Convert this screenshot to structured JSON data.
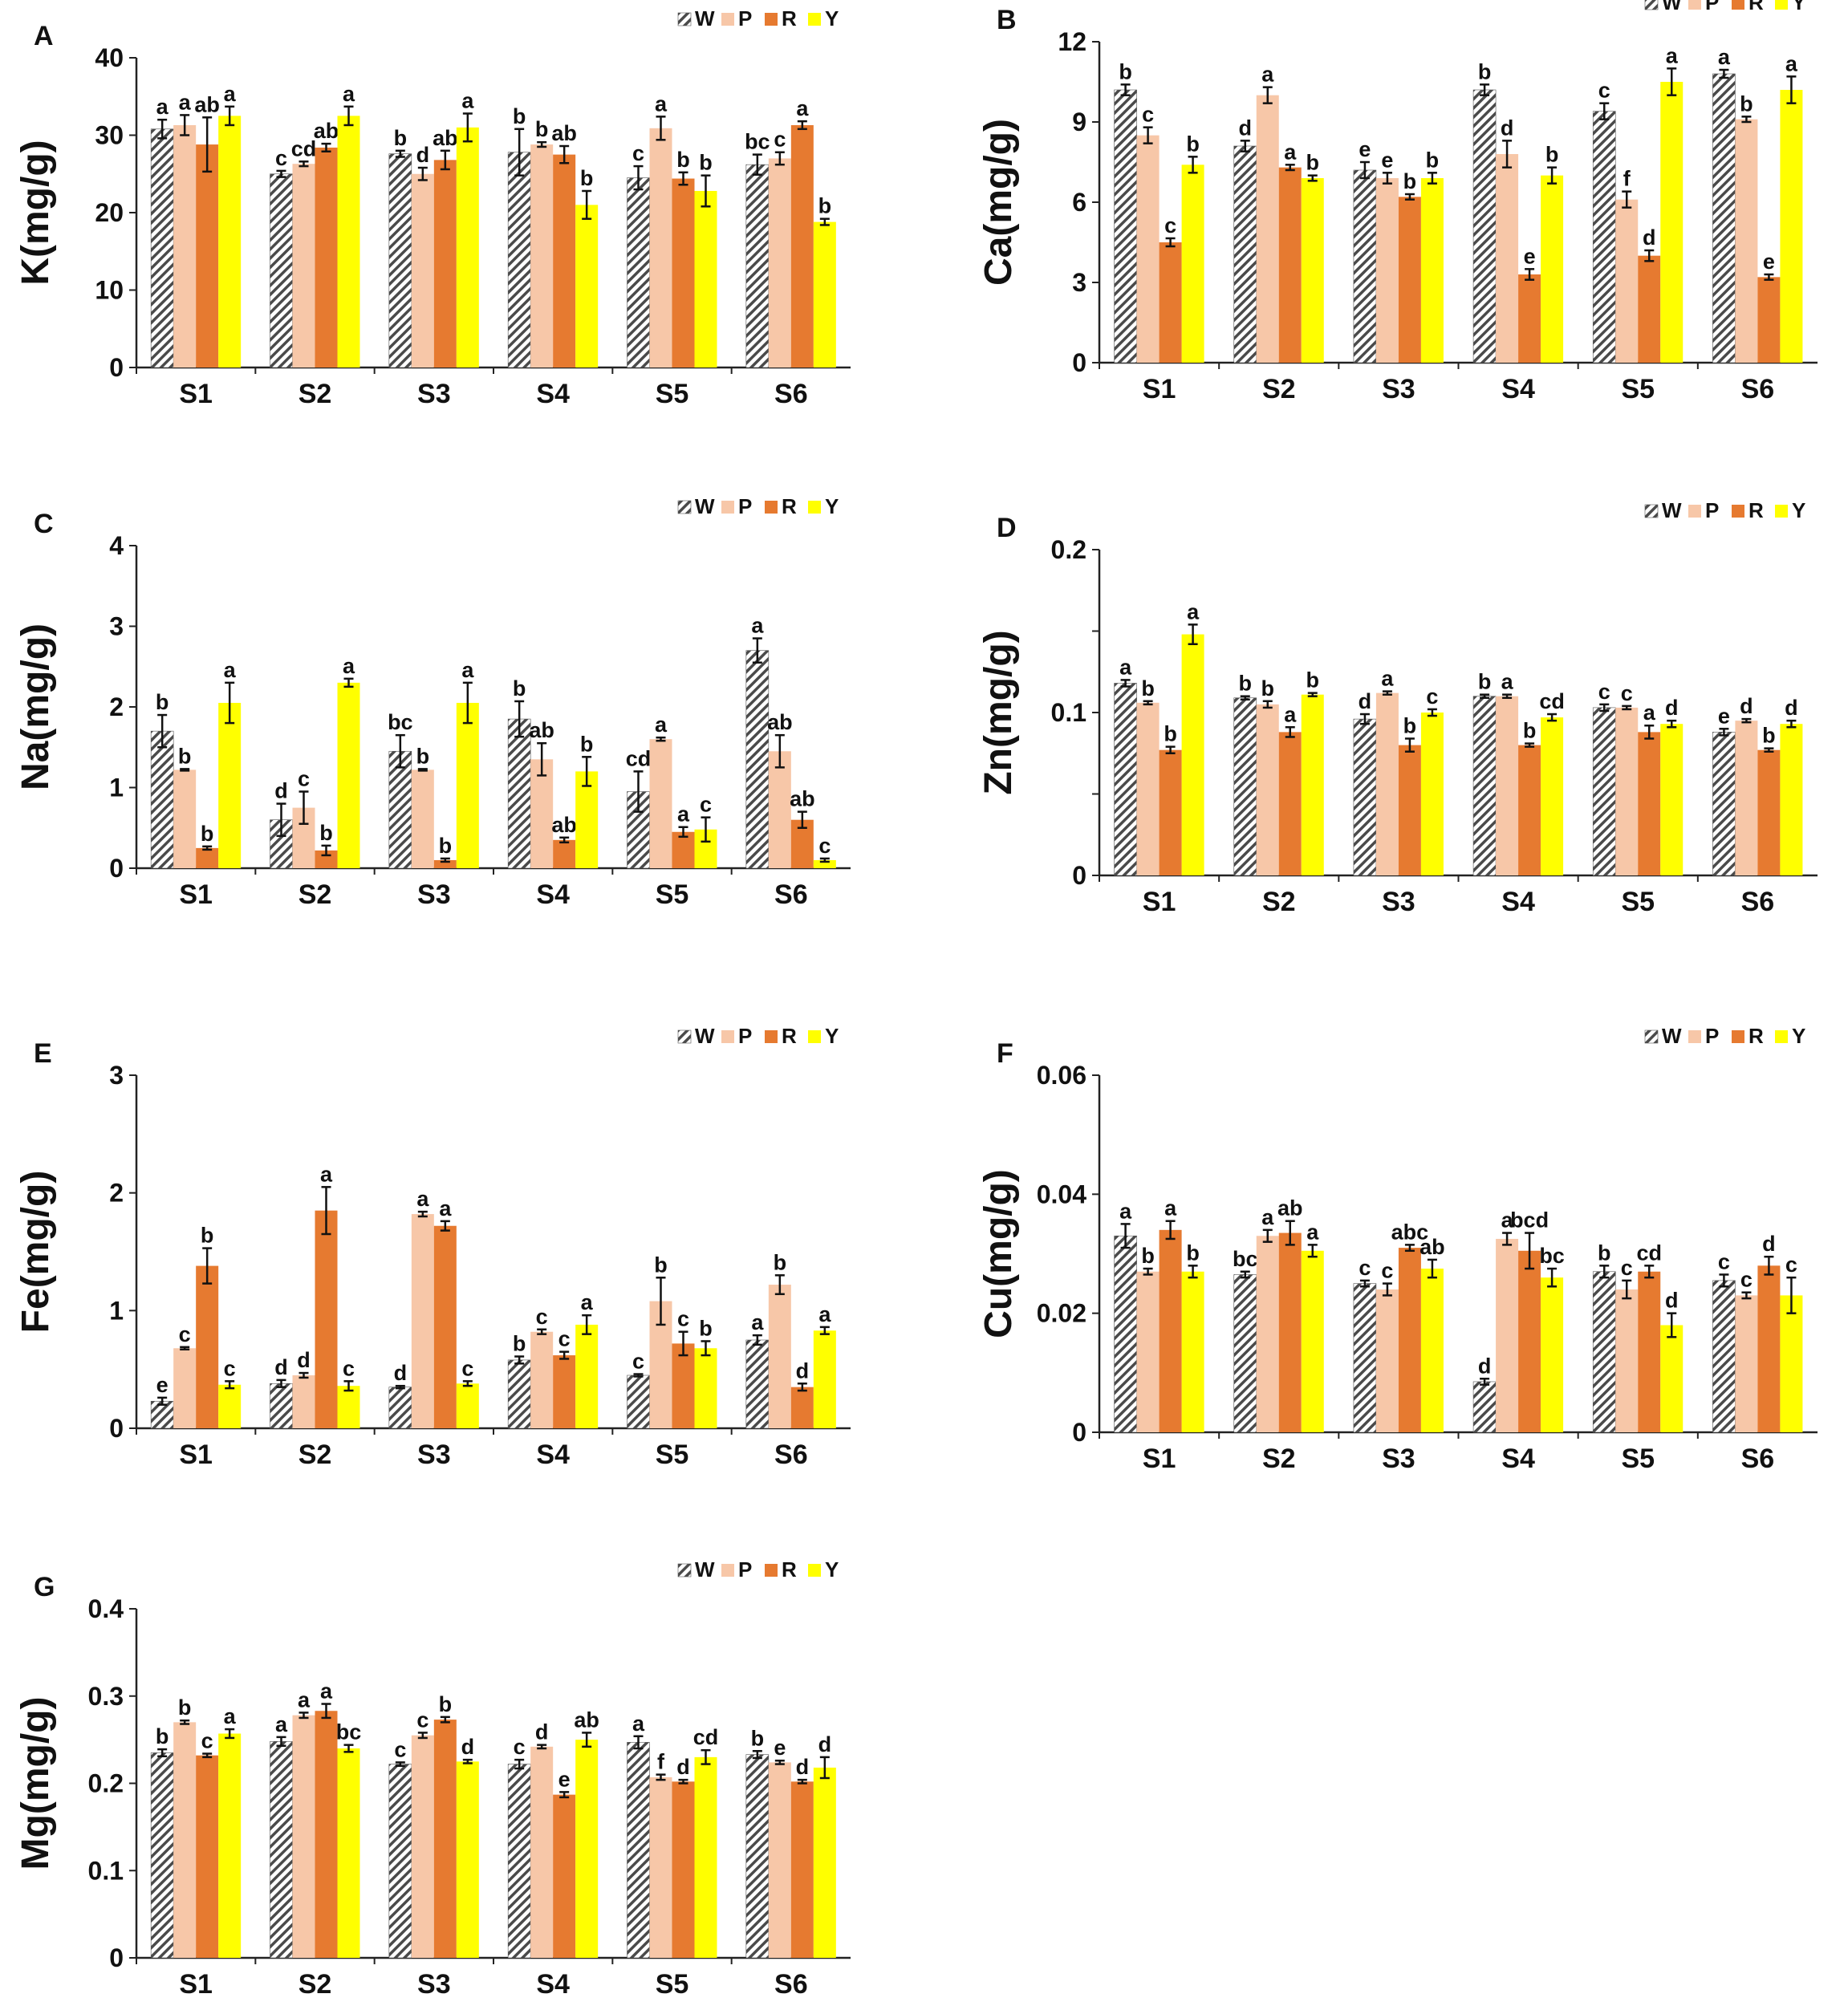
{
  "chart_data": [
    {
      "type": "bar",
      "panel": "A",
      "title": "",
      "xlabel": "",
      "ylabel": "K(mg/g)",
      "ylim": [
        0,
        40
      ],
      "yticks": [
        "0",
        "10",
        "20",
        "30",
        "40"
      ],
      "categories": [
        "S1",
        "S2",
        "S3",
        "S4",
        "S5",
        "S6"
      ],
      "legend": [
        "W",
        "P",
        "R",
        "Y"
      ],
      "legend_position": "top-right",
      "colors": [
        "#5a5a5a",
        "#f7c7a8",
        "#e67a30",
        "#ffff00"
      ],
      "series": [
        {
          "name": "W",
          "values": [
            30.8,
            25.0,
            27.6,
            27.8,
            24.5,
            26.2
          ],
          "errors": [
            1.2,
            0.4,
            0.4,
            3.0,
            1.5,
            1.3
          ],
          "letters": [
            "a",
            "c",
            "b",
            "b",
            "c",
            "bc"
          ]
        },
        {
          "name": "P",
          "values": [
            31.3,
            26.3,
            25.0,
            28.8,
            30.9,
            27.0
          ],
          "errors": [
            1.3,
            0.3,
            0.8,
            0.3,
            1.5,
            0.8
          ],
          "letters": [
            "a",
            "cd",
            "d",
            "b",
            "a",
            "c"
          ]
        },
        {
          "name": "R",
          "values": [
            28.8,
            28.4,
            26.8,
            27.5,
            24.4,
            31.3
          ],
          "errors": [
            3.5,
            0.5,
            1.2,
            1.1,
            0.8,
            0.5
          ],
          "letters": [
            "ab",
            "ab",
            "ab",
            "ab",
            "b",
            "a"
          ]
        },
        {
          "name": "Y",
          "values": [
            32.5,
            32.5,
            31.0,
            21.0,
            22.8,
            18.8
          ],
          "errors": [
            1.2,
            1.2,
            1.8,
            1.8,
            2.0,
            0.4
          ],
          "letters": [
            "a",
            "a",
            "a",
            "b",
            "b",
            "b"
          ]
        }
      ]
    },
    {
      "type": "bar",
      "panel": "B",
      "title": "",
      "xlabel": "",
      "ylabel": "Ca(mg/g)",
      "ylim": [
        0,
        12
      ],
      "yticks": [
        "0",
        "3",
        "6",
        "9",
        "12"
      ],
      "categories": [
        "S1",
        "S2",
        "S3",
        "S4",
        "S5",
        "S6"
      ],
      "legend": [
        "W",
        "P",
        "R",
        "Y"
      ],
      "legend_position": "top-right",
      "colors": [
        "#5a5a5a",
        "#f7c7a8",
        "#e67a30",
        "#ffff00"
      ],
      "series": [
        {
          "name": "W",
          "values": [
            10.2,
            8.1,
            7.2,
            10.2,
            9.4,
            10.8
          ],
          "errors": [
            0.2,
            0.2,
            0.3,
            0.2,
            0.3,
            0.15
          ],
          "letters": [
            "b",
            "d",
            "e",
            "b",
            "c",
            "a"
          ]
        },
        {
          "name": "P",
          "values": [
            8.5,
            10.0,
            6.9,
            7.8,
            6.1,
            9.1
          ],
          "errors": [
            0.3,
            0.3,
            0.2,
            0.5,
            0.3,
            0.1
          ],
          "letters": [
            "c",
            "a",
            "e",
            "d",
            "f",
            "b"
          ]
        },
        {
          "name": "R",
          "values": [
            4.5,
            7.3,
            6.2,
            3.3,
            4.0,
            3.2
          ],
          "errors": [
            0.15,
            0.1,
            0.1,
            0.2,
            0.2,
            0.1
          ],
          "letters": [
            "c",
            "a",
            "b",
            "e",
            "d",
            "e"
          ]
        },
        {
          "name": "Y",
          "values": [
            7.4,
            6.9,
            6.9,
            7.0,
            10.5,
            10.2
          ],
          "errors": [
            0.3,
            0.1,
            0.2,
            0.3,
            0.5,
            0.5
          ],
          "letters": [
            "b",
            "b",
            "b",
            "b",
            "a",
            "a"
          ]
        }
      ]
    },
    {
      "type": "bar",
      "panel": "C",
      "title": "",
      "xlabel": "",
      "ylabel": "Na(mg/g)",
      "ylim": [
        0,
        4
      ],
      "yticks": [
        "0",
        "1",
        "2",
        "3",
        "4"
      ],
      "categories": [
        "S1",
        "S2",
        "S3",
        "S4",
        "S5",
        "S6"
      ],
      "legend": [
        "W",
        "P",
        "R",
        "Y"
      ],
      "legend_position": "top-right",
      "colors": [
        "#5a5a5a",
        "#f7c7a8",
        "#e67a30",
        "#ffff00"
      ],
      "series": [
        {
          "name": "W",
          "values": [
            1.7,
            0.6,
            1.45,
            1.85,
            0.95,
            2.7
          ],
          "errors": [
            0.2,
            0.2,
            0.2,
            0.22,
            0.25,
            0.15
          ],
          "letters": [
            "b",
            "d",
            "bc",
            "b",
            "cd",
            "a"
          ]
        },
        {
          "name": "P",
          "values": [
            1.22,
            0.75,
            1.22,
            1.35,
            1.6,
            1.45
          ],
          "errors": [
            0.01,
            0.2,
            0.01,
            0.2,
            0.02,
            0.2
          ],
          "letters": [
            "b",
            "c",
            "b",
            "ab",
            "a",
            "ab"
          ]
        },
        {
          "name": "R",
          "values": [
            0.25,
            0.22,
            0.1,
            0.35,
            0.45,
            0.6
          ],
          "errors": [
            0.02,
            0.06,
            0.02,
            0.03,
            0.06,
            0.1
          ],
          "letters": [
            "b",
            "b",
            "b",
            "ab",
            "a",
            "ab"
          ]
        },
        {
          "name": "Y",
          "values": [
            2.05,
            2.3,
            2.05,
            1.2,
            0.48,
            0.1
          ],
          "errors": [
            0.25,
            0.05,
            0.25,
            0.18,
            0.15,
            0.02
          ],
          "letters": [
            "a",
            "a",
            "a",
            "b",
            "c",
            "c"
          ]
        }
      ]
    },
    {
      "type": "bar",
      "panel": "D",
      "title": "",
      "xlabel": "",
      "ylabel": "Zn(mg/g)",
      "ylim": [
        0,
        0.2
      ],
      "yticks": [
        "0",
        "",
        "0.1",
        "",
        "0.2"
      ],
      "categories": [
        "S1",
        "S2",
        "S3",
        "S4",
        "S5",
        "S6"
      ],
      "legend": [
        "W",
        "P",
        "R",
        "Y"
      ],
      "legend_position": "top-right",
      "colors": [
        "#5a5a5a",
        "#f7c7a8",
        "#e67a30",
        "#ffff00"
      ],
      "series": [
        {
          "name": "W",
          "values": [
            0.118,
            0.109,
            0.096,
            0.11,
            0.103,
            0.088
          ],
          "errors": [
            0.002,
            0.001,
            0.003,
            0.001,
            0.002,
            0.002
          ],
          "letters": [
            "a",
            "b",
            "d",
            "b",
            "c",
            "e"
          ]
        },
        {
          "name": "P",
          "values": [
            0.106,
            0.105,
            0.112,
            0.11,
            0.103,
            0.095
          ],
          "errors": [
            0.001,
            0.002,
            0.001,
            0.001,
            0.001,
            0.001
          ],
          "letters": [
            "b",
            "b",
            "a",
            "a",
            "c",
            "d"
          ]
        },
        {
          "name": "R",
          "values": [
            0.077,
            0.088,
            0.08,
            0.08,
            0.088,
            0.077
          ],
          "errors": [
            0.002,
            0.003,
            0.004,
            0.001,
            0.004,
            0.001
          ],
          "letters": [
            "b",
            "a",
            "b",
            "b",
            "a",
            "b"
          ]
        },
        {
          "name": "Y",
          "values": [
            0.148,
            0.111,
            0.1,
            0.097,
            0.093,
            0.093
          ],
          "errors": [
            0.006,
            0.001,
            0.002,
            0.002,
            0.002,
            0.002
          ],
          "letters": [
            "a",
            "b",
            "c",
            "cd",
            "d",
            "d"
          ]
        }
      ]
    },
    {
      "type": "bar",
      "panel": "E",
      "title": "",
      "xlabel": "",
      "ylabel": "Fe(mg/g)",
      "ylim": [
        0,
        3
      ],
      "yticks": [
        "0",
        "1",
        "2",
        "3"
      ],
      "categories": [
        "S1",
        "S2",
        "S3",
        "S4",
        "S5",
        "S6"
      ],
      "legend": [
        "W",
        "P",
        "R",
        "Y"
      ],
      "legend_position": "top-right",
      "colors": [
        "#5a5a5a",
        "#f7c7a8",
        "#e67a30",
        "#ffff00"
      ],
      "series": [
        {
          "name": "W",
          "values": [
            0.23,
            0.38,
            0.35,
            0.58,
            0.45,
            0.75
          ],
          "errors": [
            0.03,
            0.03,
            0.01,
            0.03,
            0.01,
            0.04
          ],
          "letters": [
            "e",
            "d",
            "d",
            "b",
            "c",
            "a"
          ]
        },
        {
          "name": "P",
          "values": [
            0.68,
            0.45,
            1.82,
            0.82,
            1.08,
            1.22
          ],
          "errors": [
            0.01,
            0.02,
            0.02,
            0.02,
            0.2,
            0.08
          ],
          "letters": [
            "c",
            "d",
            "a",
            "c",
            "b",
            "b"
          ]
        },
        {
          "name": "R",
          "values": [
            1.38,
            1.85,
            1.72,
            0.62,
            0.72,
            0.35
          ],
          "errors": [
            0.15,
            0.2,
            0.04,
            0.03,
            0.1,
            0.03
          ],
          "letters": [
            "b",
            "a",
            "a",
            "c",
            "c",
            "d"
          ]
        },
        {
          "name": "Y",
          "values": [
            0.37,
            0.36,
            0.38,
            0.88,
            0.68,
            0.83
          ],
          "errors": [
            0.03,
            0.04,
            0.02,
            0.08,
            0.06,
            0.03
          ],
          "letters": [
            "c",
            "c",
            "c",
            "a",
            "b",
            "a"
          ]
        }
      ]
    },
    {
      "type": "bar",
      "panel": "F",
      "title": "",
      "xlabel": "",
      "ylabel": "Cu(mg/g)",
      "ylim": [
        0,
        0.06
      ],
      "yticks": [
        "0",
        "0.02",
        "0.04",
        "0.06"
      ],
      "categories": [
        "S1",
        "S2",
        "S3",
        "S4",
        "S5",
        "S6"
      ],
      "legend": [
        "W",
        "P",
        "R",
        "Y"
      ],
      "legend_position": "top-right",
      "colors": [
        "#5a5a5a",
        "#f7c7a8",
        "#e67a30",
        "#ffff00"
      ],
      "series": [
        {
          "name": "W",
          "values": [
            0.033,
            0.0265,
            0.025,
            0.0085,
            0.027,
            0.0255
          ],
          "errors": [
            0.002,
            0.0005,
            0.0005,
            0.0005,
            0.001,
            0.001
          ],
          "letters": [
            "a",
            "bc",
            "c",
            "d",
            "b",
            "c"
          ]
        },
        {
          "name": "P",
          "values": [
            0.027,
            0.033,
            0.024,
            0.0325,
            0.024,
            0.023
          ],
          "errors": [
            0.0005,
            0.001,
            0.001,
            0.001,
            0.0015,
            0.0005
          ],
          "letters": [
            "b",
            "a",
            "c",
            "a",
            "c",
            "c"
          ]
        },
        {
          "name": "R",
          "values": [
            0.034,
            0.0335,
            0.031,
            0.0305,
            0.027,
            0.028
          ],
          "errors": [
            0.0015,
            0.002,
            0.0005,
            0.003,
            0.001,
            0.0015
          ],
          "letters": [
            "a",
            "ab",
            "abc",
            "bcd",
            "cd",
            "d"
          ]
        },
        {
          "name": "Y",
          "values": [
            0.027,
            0.0305,
            0.0275,
            0.026,
            0.018,
            0.023
          ],
          "errors": [
            0.001,
            0.001,
            0.0015,
            0.0015,
            0.002,
            0.003
          ],
          "letters": [
            "b",
            "a",
            "ab",
            "bc",
            "d",
            "c"
          ]
        }
      ]
    },
    {
      "type": "bar",
      "panel": "G",
      "title": "",
      "xlabel": "",
      "ylabel": "Mg(mg/g)",
      "ylim": [
        0,
        0.4
      ],
      "yticks": [
        "0",
        "0.1",
        "0.2",
        "0.3",
        "0.4"
      ],
      "categories": [
        "S1",
        "S2",
        "S3",
        "S4",
        "S5",
        "S6"
      ],
      "legend": [
        "W",
        "P",
        "R",
        "Y"
      ],
      "legend_position": "top-right",
      "colors": [
        "#5a5a5a",
        "#f7c7a8",
        "#e67a30",
        "#ffff00"
      ],
      "series": [
        {
          "name": "W",
          "values": [
            0.235,
            0.248,
            0.222,
            0.222,
            0.247,
            0.233
          ],
          "errors": [
            0.004,
            0.005,
            0.002,
            0.005,
            0.007,
            0.004
          ],
          "letters": [
            "b",
            "a",
            "c",
            "c",
            "a",
            "b"
          ]
        },
        {
          "name": "P",
          "values": [
            0.27,
            0.278,
            0.255,
            0.242,
            0.207,
            0.224
          ],
          "errors": [
            0.002,
            0.003,
            0.003,
            0.002,
            0.003,
            0.002
          ],
          "letters": [
            "b",
            "a",
            "c",
            "d",
            "f",
            "e"
          ]
        },
        {
          "name": "R",
          "values": [
            0.232,
            0.283,
            0.273,
            0.187,
            0.202,
            0.202
          ],
          "errors": [
            0.002,
            0.008,
            0.003,
            0.003,
            0.002,
            0.002
          ],
          "letters": [
            "c",
            "a",
            "b",
            "e",
            "d",
            "d"
          ]
        },
        {
          "name": "Y",
          "values": [
            0.257,
            0.24,
            0.225,
            0.25,
            0.23,
            0.218
          ],
          "errors": [
            0.005,
            0.004,
            0.002,
            0.008,
            0.008,
            0.012
          ],
          "letters": [
            "a",
            "bc",
            "d",
            "ab",
            "cd",
            "d"
          ]
        }
      ]
    }
  ]
}
